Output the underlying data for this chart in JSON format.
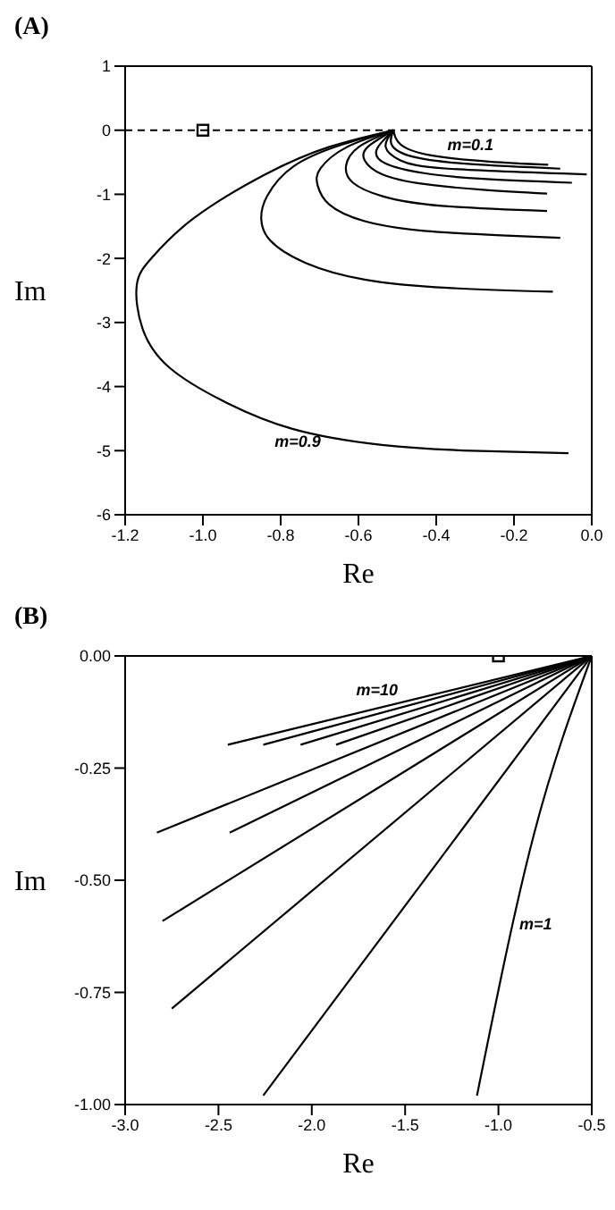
{
  "chart_data": [
    {
      "type": "line",
      "title": "(A)",
      "xlabel": "Re",
      "ylabel": "Im",
      "xlim": [
        -1.2,
        0.0
      ],
      "ylim": [
        -6,
        1
      ],
      "xticks": [
        {
          "value": -1.2,
          "label": "-1.2"
        },
        {
          "value": -1.0,
          "label": "-1.0"
        },
        {
          "value": -0.8,
          "label": "-0.8"
        },
        {
          "value": -0.6,
          "label": "-0.6"
        },
        {
          "value": -0.4,
          "label": "-0.4"
        },
        {
          "value": -0.2,
          "label": "-0.2"
        },
        {
          "value": 0.0,
          "label": "0.0"
        }
      ],
      "yticks": [
        1,
        0,
        -1,
        -2,
        -3,
        -4,
        -5,
        -6
      ],
      "grid": false,
      "legend": false,
      "marker": "none",
      "line_style": "solid",
      "ref_lines": [
        {
          "axis": "y",
          "value": 0,
          "line_style": "dashed",
          "color": "#000000"
        }
      ],
      "series": [
        {
          "color": "#000000",
          "x": [
            -0.51,
            -0.675,
            -0.84,
            -1.025,
            -1.13,
            -1.17,
            -1.155,
            -1.085,
            -0.95,
            -0.77,
            -0.54,
            -0.31,
            -0.06
          ],
          "values": [
            0,
            -0.26,
            -0.69,
            -1.38,
            -1.98,
            -2.41,
            -3.1,
            -3.71,
            -4.22,
            -4.66,
            -4.91,
            -5.0,
            -5.04
          ]
        },
        {
          "color": "#000000",
          "x": [
            -0.51,
            -0.64,
            -0.766,
            -0.835,
            -0.85,
            -0.827,
            -0.736,
            -0.584,
            -0.37,
            -0.1
          ],
          "values": [
            0,
            -0.22,
            -0.56,
            -1.03,
            -1.38,
            -1.72,
            -2.07,
            -2.33,
            -2.46,
            -2.52
          ]
        },
        {
          "color": "#000000",
          "x": [
            -0.51,
            -0.629,
            -0.698,
            -0.705,
            -0.675,
            -0.584,
            -0.431,
            -0.233,
            -0.081
          ],
          "values": [
            0,
            -0.26,
            -0.6,
            -0.86,
            -1.16,
            -1.42,
            -1.57,
            -1.64,
            -1.68
          ]
        },
        {
          "color": "#000000",
          "x": [
            -0.51,
            -0.599,
            -0.632,
            -0.614,
            -0.538,
            -0.386,
            -0.115
          ],
          "values": [
            0,
            -0.26,
            -0.56,
            -0.82,
            -1.03,
            -1.18,
            -1.26
          ]
        },
        {
          "color": "#000000",
          "x": [
            -0.51,
            -0.576,
            -0.584,
            -0.538,
            -0.431,
            -0.279,
            -0.115
          ],
          "values": [
            0,
            -0.26,
            -0.47,
            -0.69,
            -0.84,
            -0.93,
            -0.99
          ]
        },
        {
          "color": "#000000",
          "x": [
            -0.51,
            -0.553,
            -0.53,
            -0.431,
            -0.279,
            -0.051
          ],
          "values": [
            0,
            -0.3,
            -0.52,
            -0.67,
            -0.76,
            -0.82
          ]
        },
        {
          "color": "#000000",
          "x": [
            -0.51,
            -0.53,
            -0.492,
            -0.37,
            -0.013
          ],
          "values": [
            0,
            -0.26,
            -0.47,
            -0.6,
            -0.69
          ]
        },
        {
          "color": "#000000",
          "x": [
            -0.51,
            -0.515,
            -0.462,
            -0.31,
            -0.081
          ],
          "values": [
            0,
            -0.22,
            -0.41,
            -0.53,
            -0.6
          ]
        },
        {
          "color": "#000000",
          "x": [
            -0.51,
            -0.492,
            -0.416,
            -0.264,
            -0.112
          ],
          "values": [
            0,
            -0.22,
            -0.39,
            -0.49,
            -0.54
          ]
        },
        {
          "type": "scatter",
          "marker": "square",
          "color": "#000000",
          "x": [
            -1.0
          ],
          "values": [
            0
          ]
        }
      ],
      "annotations": [
        "m=0.1",
        "m=0.9"
      ]
    },
    {
      "type": "line",
      "title": "(B)",
      "xlabel": "Re",
      "ylabel": "Im",
      "xlim": [
        -3.0,
        -0.5
      ],
      "ylim": [
        -1.0,
        0.0
      ],
      "xticks": [
        {
          "value": -3.0,
          "label": "-3.0"
        },
        {
          "value": -2.5,
          "label": "-2.5"
        },
        {
          "value": -2.0,
          "label": "-2.0"
        },
        {
          "value": -1.5,
          "label": "-1.5"
        },
        {
          "value": -1.0,
          "label": "-1.0"
        },
        {
          "value": -0.5,
          "label": "-0.5"
        }
      ],
      "yticks": [
        {
          "value": 0,
          "label": "0.00"
        },
        {
          "value": -0.25,
          "label": "-0.25"
        },
        {
          "value": -0.5,
          "label": "-0.50"
        },
        {
          "value": -0.75,
          "label": "-0.75"
        },
        {
          "value": -1.0,
          "label": "-1.00"
        }
      ],
      "grid": false,
      "legend": false,
      "marker": "none",
      "line_style": "solid",
      "series": [
        {
          "color": "#000000",
          "x": [
            -0.5,
            -2.45
          ],
          "values": [
            0,
            -0.198
          ]
        },
        {
          "color": "#000000",
          "x": [
            -0.5,
            -2.26
          ],
          "values": [
            0,
            -0.198
          ]
        },
        {
          "color": "#000000",
          "x": [
            -0.5,
            -2.06
          ],
          "values": [
            0,
            -0.198
          ]
        },
        {
          "color": "#000000",
          "x": [
            -0.5,
            -1.87
          ],
          "values": [
            0,
            -0.198
          ]
        },
        {
          "color": "#000000",
          "x": [
            -0.5,
            -2.83
          ],
          "values": [
            0,
            -0.394
          ]
        },
        {
          "color": "#000000",
          "x": [
            -0.5,
            -2.44
          ],
          "values": [
            0,
            -0.394
          ]
        },
        {
          "color": "#000000",
          "x": [
            -0.5,
            -2.8
          ],
          "values": [
            0,
            -0.591
          ]
        },
        {
          "color": "#000000",
          "x": [
            -0.5,
            -2.75
          ],
          "values": [
            0,
            -0.786
          ]
        },
        {
          "color": "#000000",
          "x": [
            -0.5,
            -2.26
          ],
          "values": [
            0,
            -0.98
          ]
        },
        {
          "color": "#000000",
          "x": [
            -0.5,
            -0.81,
            -1.115
          ],
          "values": [
            0,
            -0.398,
            -0.98
          ]
        },
        {
          "type": "scatter",
          "marker": "square",
          "color": "#000000",
          "x": [
            -1.0
          ],
          "values": [
            0
          ]
        }
      ],
      "annotations": [
        "m=10",
        "m=1"
      ]
    }
  ]
}
